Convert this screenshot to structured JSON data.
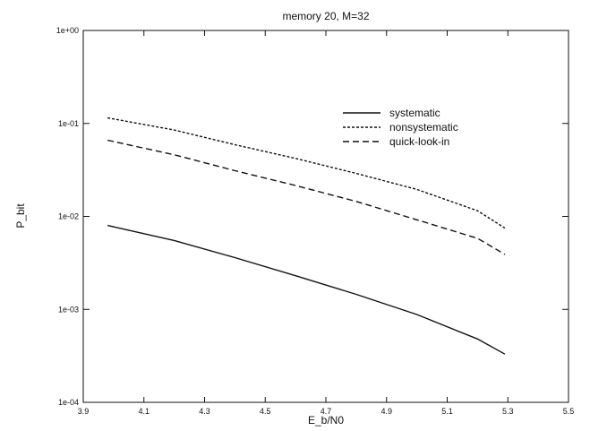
{
  "chart_data": {
    "type": "line",
    "title": "memory 20, M=32",
    "xlabel": "E_b/N0",
    "ylabel": "P_bit",
    "xlim": [
      3.9,
      5.5
    ],
    "ylim": [
      0.0001,
      1
    ],
    "yscale": "log",
    "grid": false,
    "legend_position": "top-right",
    "x_ticks": [
      3.9,
      4.1,
      4.3,
      4.5,
      4.7,
      4.9,
      5.1,
      5.3,
      5.5
    ],
    "x_tick_labels": [
      "3.9",
      "4.1",
      "4.3",
      "4.5",
      "4.7",
      "4.9",
      "5.1",
      "5.3",
      "5.5"
    ],
    "y_ticks": [
      0.0001,
      0.001,
      0.01,
      0.1,
      1
    ],
    "y_tick_labels": [
      "1e-04",
      "1e-03",
      "1e-02",
      "1e-01",
      "1e+00"
    ],
    "series": [
      {
        "name": "systematic",
        "style": "solid",
        "x": [
          3.98,
          4.2,
          4.4,
          4.6,
          4.8,
          5.0,
          5.2,
          5.29
        ],
        "y": [
          0.008,
          0.0055,
          0.0036,
          0.0023,
          0.00145,
          0.00088,
          0.00048,
          0.00033
        ]
      },
      {
        "name": "nonsystematic",
        "style": "dotted",
        "x": [
          3.98,
          4.2,
          4.4,
          4.6,
          4.8,
          5.0,
          5.2,
          5.29
        ],
        "y": [
          0.115,
          0.085,
          0.059,
          0.042,
          0.029,
          0.0195,
          0.0115,
          0.0075
        ]
      },
      {
        "name": "quick-look-in",
        "style": "dashed",
        "x": [
          3.98,
          4.2,
          4.4,
          4.6,
          4.8,
          5.0,
          5.2,
          5.29
        ],
        "y": [
          0.066,
          0.046,
          0.031,
          0.0215,
          0.0145,
          0.0092,
          0.0058,
          0.0039
        ]
      }
    ]
  }
}
